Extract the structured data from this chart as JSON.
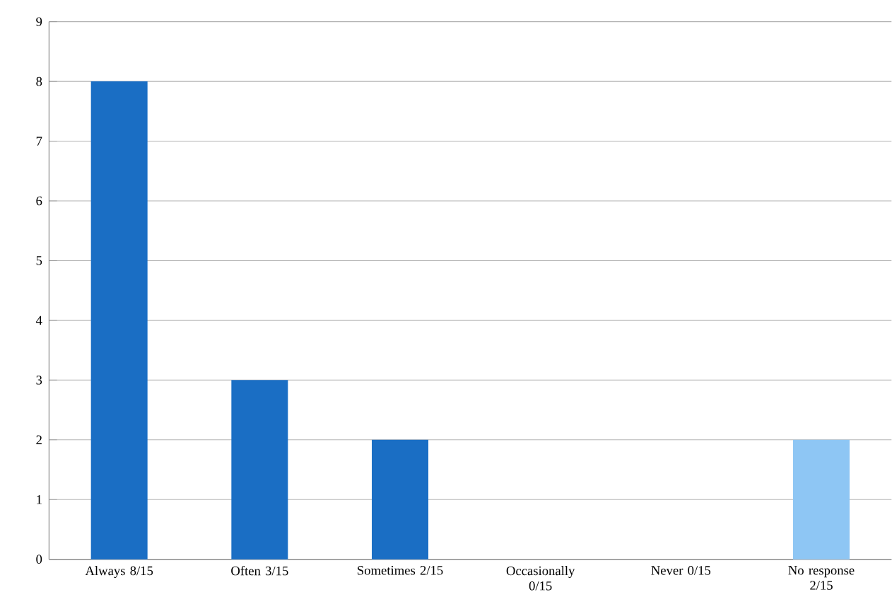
{
  "chart_data": {
    "type": "bar",
    "categories": [
      "Always 8/15",
      "Often 3/15",
      "Sometimes 2/15",
      "Occasionally 0/15",
      "Never 0/15",
      "No response 2/15"
    ],
    "values": [
      8,
      3,
      2,
      0,
      0,
      2
    ],
    "colors": [
      "#1a6ec4",
      "#1a6ec4",
      "#1a6ec4",
      "#1a6ec4",
      "#1a6ec4",
      "#8ec6f4"
    ],
    "ylim": [
      0,
      9
    ],
    "yticks": [
      0,
      1,
      2,
      3,
      4,
      5,
      6,
      7,
      8,
      9
    ],
    "grid": "y"
  }
}
